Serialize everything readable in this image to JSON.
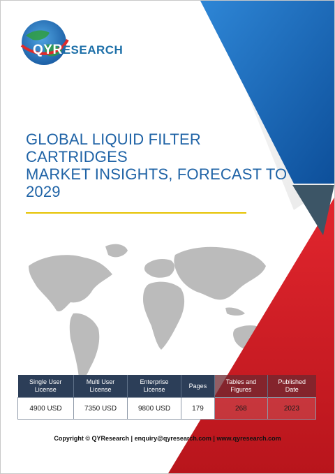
{
  "brand": {
    "logo_prefix": "QYR",
    "logo_suffix": "ESEARCH"
  },
  "title": {
    "line1": "GLOBAL LIQUID FILTER CARTRIDGES",
    "line2": "MARKET INSIGHTS, FORECAST TO",
    "line3": "2029"
  },
  "table": {
    "headers": [
      {
        "line1": "Single User",
        "line2": "License"
      },
      {
        "line1": "Multi User",
        "line2": "License"
      },
      {
        "line1": "Enterprise",
        "line2": "License"
      },
      {
        "line1": "Pages",
        "line2": ""
      },
      {
        "line1": "Tables and",
        "line2": "Figures"
      },
      {
        "line1": "Published",
        "line2": "Date"
      }
    ],
    "values": [
      "4900 USD",
      "7350 USD",
      "9800 USD",
      "179",
      "268",
      "2023"
    ]
  },
  "footer": {
    "copyright": "Copyright © QYResearch",
    "email": "enquiry@qyresearch.com",
    "website": "www.qyresearch.com",
    "separator": "|"
  },
  "colors": {
    "title_blue": "#1f63a6",
    "accent_yellow": "#e6c200",
    "header_navy": "#2c3e58",
    "accent_red": "#d8222a",
    "accent_blue": "#1a6fc0"
  }
}
